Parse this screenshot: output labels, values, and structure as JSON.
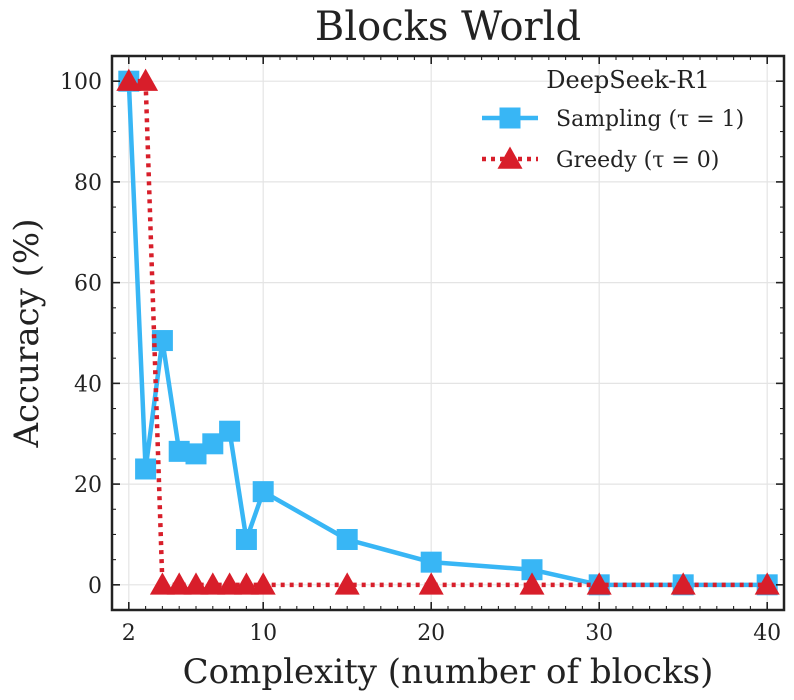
{
  "chart_data": {
    "type": "line",
    "title": "Blocks World",
    "xlabel": "Complexity (number of blocks)",
    "ylabel": "Accuracy (%)",
    "xlim": [
      1,
      41
    ],
    "ylim": [
      -5,
      105
    ],
    "xticks": [
      2,
      10,
      20,
      30,
      40
    ],
    "yticks": [
      0,
      20,
      40,
      60,
      80,
      100
    ],
    "grid": true,
    "legend": {
      "title": "DeepSeek-R1",
      "position": "top-right"
    },
    "series": [
      {
        "name": "Sampling (τ = 1)",
        "color": "#38b6f5",
        "linestyle": "solid",
        "marker": "square",
        "x": [
          2,
          3,
          4,
          5,
          6,
          7,
          8,
          9,
          10,
          15,
          20,
          26,
          30,
          35,
          40
        ],
        "y": [
          100,
          23,
          48.5,
          26.5,
          26,
          28,
          30.5,
          9,
          18.5,
          9,
          4.5,
          3,
          0,
          0,
          0
        ]
      },
      {
        "name": "Greedy (τ = 0)",
        "color": "#d81e2a",
        "linestyle": "dotted",
        "marker": "triangle",
        "x": [
          2,
          3,
          4,
          5,
          6,
          7,
          8,
          9,
          10,
          15,
          20,
          26,
          30,
          35,
          40
        ],
        "y": [
          100,
          100,
          0,
          0,
          0,
          0,
          0,
          0,
          0,
          0,
          0,
          0,
          0,
          0,
          0
        ]
      }
    ]
  }
}
